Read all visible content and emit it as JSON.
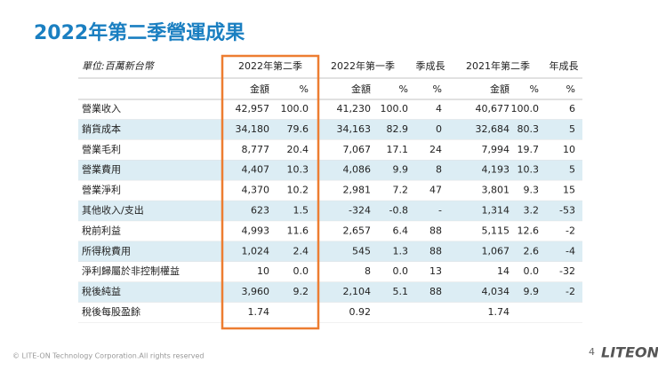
{
  "title": "2022年第二季營運成果",
  "table": {
    "unit": "單位:百萬新台幣",
    "groups": [
      "2022年第二季",
      "2022年第一季",
      "季成長",
      "2021年第二季",
      "年成長"
    ],
    "subheaders": [
      "金額",
      "%",
      "金額",
      "%",
      "%",
      "金額",
      "%",
      "%"
    ],
    "rows": [
      [
        "營業收入",
        "42,957",
        "100.0",
        "41,230",
        "100.0",
        "4",
        "40,677",
        "100.0",
        "6"
      ],
      [
        "銷貨成本",
        "34,180",
        "79.6",
        "34,163",
        "82.9",
        "0",
        "32,684",
        "80.3",
        "5"
      ],
      [
        "營業毛利",
        "8,777",
        "20.4",
        "7,067",
        "17.1",
        "24",
        "7,994",
        "19.7",
        "10"
      ],
      [
        "營業費用",
        "4,407",
        "10.3",
        "4,086",
        "9.9",
        "8",
        "4,193",
        "10.3",
        "5"
      ],
      [
        "營業淨利",
        "4,370",
        "10.2",
        "2,981",
        "7.2",
        "47",
        "3,801",
        "9.3",
        "15"
      ],
      [
        "其他收入/支出",
        "623",
        "1.5",
        "-324",
        "-0.8",
        "-",
        "1,314",
        "3.2",
        "-53"
      ],
      [
        "稅前利益",
        "4,993",
        "11.6",
        "2,657",
        "6.4",
        "88",
        "5,115",
        "12.6",
        "-2"
      ],
      [
        "所得稅費用",
        "1,024",
        "2.4",
        "545",
        "1.3",
        "88",
        "1,067",
        "2.6",
        "-4"
      ],
      [
        "淨利歸屬於非控制權益",
        "10",
        "0.0",
        "8",
        "0.0",
        "13",
        "14",
        "0.0",
        "-32"
      ],
      [
        "稅後純益",
        "3,960",
        "9.2",
        "2,104",
        "5.1",
        "88",
        "4,034",
        "9.9",
        "-2"
      ],
      [
        "稅後每股盈餘",
        "1.74",
        null,
        "0.92",
        null,
        null,
        "1.74",
        null,
        null
      ]
    ]
  },
  "footer": {
    "copyright": "© LITE-ON Technology Corporation.All rights reserved",
    "page": "4",
    "logo": "LITEON"
  }
}
